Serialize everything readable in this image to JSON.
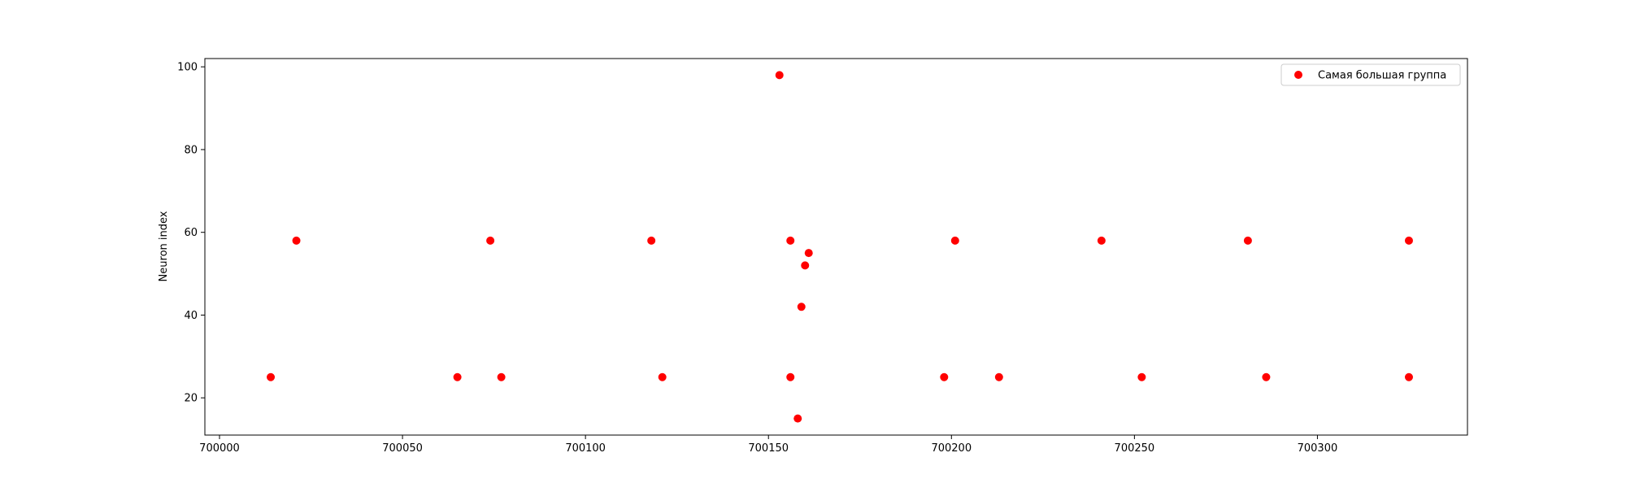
{
  "chart_data": {
    "type": "scatter",
    "title": "",
    "xlabel": "",
    "ylabel": "Neuron index",
    "xlim": [
      699996,
      700341
    ],
    "ylim": [
      11,
      102
    ],
    "xticks": [
      700000,
      700050,
      700100,
      700150,
      700200,
      700250,
      700300
    ],
    "yticks": [
      20,
      40,
      60,
      80,
      100
    ],
    "grid": false,
    "legend_position": "top-right",
    "series": [
      {
        "name": "Самая большая группа",
        "color": "#ff0000",
        "points": [
          {
            "x": 700014,
            "y": 25
          },
          {
            "x": 700021,
            "y": 58
          },
          {
            "x": 700065,
            "y": 25
          },
          {
            "x": 700074,
            "y": 58
          },
          {
            "x": 700077,
            "y": 25
          },
          {
            "x": 700118,
            "y": 58
          },
          {
            "x": 700121,
            "y": 25
          },
          {
            "x": 700153,
            "y": 98
          },
          {
            "x": 700156,
            "y": 58
          },
          {
            "x": 700156,
            "y": 25
          },
          {
            "x": 700158,
            "y": 15
          },
          {
            "x": 700159,
            "y": 42
          },
          {
            "x": 700160,
            "y": 52
          },
          {
            "x": 700161,
            "y": 55
          },
          {
            "x": 700198,
            "y": 25
          },
          {
            "x": 700201,
            "y": 58
          },
          {
            "x": 700213,
            "y": 25
          },
          {
            "x": 700241,
            "y": 58
          },
          {
            "x": 700252,
            "y": 25
          },
          {
            "x": 700281,
            "y": 58
          },
          {
            "x": 700286,
            "y": 25
          },
          {
            "x": 700325,
            "y": 58
          },
          {
            "x": 700325,
            "y": 25
          }
        ]
      }
    ]
  }
}
